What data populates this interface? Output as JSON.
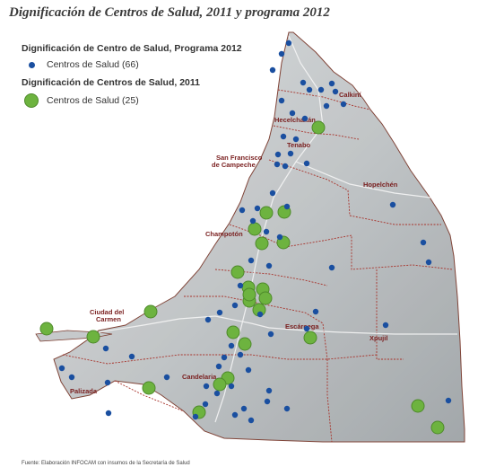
{
  "title": "Dignificación de Centros de Salud, 2011 y programa 2012",
  "legend": {
    "group_2012": {
      "heading": "Dignificación de Centro de Salud, Programa 2012",
      "item": "Centros de Salud (66)",
      "color": "#1a4fa0"
    },
    "group_2011": {
      "heading": "Dignificación de Centros de Salud, 2011",
      "item": "Centros de Salud (25)",
      "color": "#6db33f"
    }
  },
  "places": [
    "Calkiní",
    "Hecelchakán",
    "Tenabo",
    "San Francisco",
    "de Campeche",
    "Hopelchén",
    "Champotón",
    "Ciudad del",
    "Carmen",
    "Escárcega",
    "Xpujil",
    "Candelaria",
    "Palizada"
  ],
  "source": "Fuente: Elaboración INFOCAM con insumos de la Secretaría de Salud"
}
